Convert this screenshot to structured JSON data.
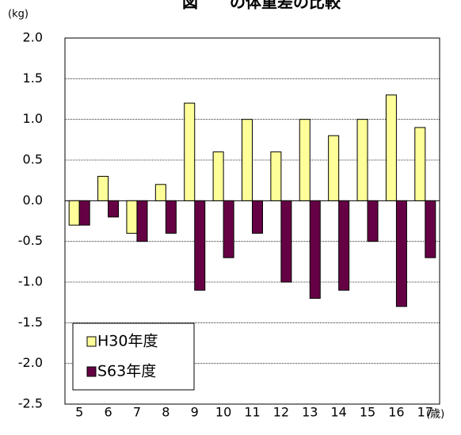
{
  "chart_data": {
    "type": "bar",
    "title": "図　　の体重差の比較",
    "y_label": "(kg)",
    "x_label": "(歳)",
    "categories": [
      "5",
      "6",
      "7",
      "8",
      "9",
      "10",
      "11",
      "12",
      "13",
      "14",
      "15",
      "16",
      "17"
    ],
    "series": [
      {
        "name": "H30年度",
        "color": "#ffff99",
        "values": [
          -0.3,
          0.3,
          -0.4,
          0.2,
          1.2,
          0.6,
          1.0,
          0.6,
          1.0,
          0.8,
          1.0,
          1.3,
          0.9
        ]
      },
      {
        "name": "S63年度",
        "color": "#660044",
        "values": [
          -0.3,
          -0.2,
          -0.5,
          -0.4,
          -1.1,
          -0.7,
          -0.4,
          -1.0,
          -1.2,
          -1.1,
          -0.5,
          -1.3,
          -0.7
        ]
      }
    ],
    "ylim": [
      -2.5,
      2.0
    ],
    "yticks": [
      {
        "value": -2.5,
        "label": "-2.5"
      },
      {
        "value": -2,
        "label": "-2.0"
      },
      {
        "value": -1.5,
        "label": "-1.5"
      },
      {
        "value": -1,
        "label": "-1.0"
      },
      {
        "value": -0.5,
        "label": "-0.5"
      },
      {
        "value": 0,
        "label": "0.0"
      },
      {
        "value": 0.5,
        "label": "0.5"
      },
      {
        "value": 1,
        "label": "1.0"
      },
      {
        "value": 1.5,
        "label": "1.5"
      },
      {
        "value": 2,
        "label": "2.0"
      }
    ],
    "grid": true,
    "legend": "lower left"
  }
}
